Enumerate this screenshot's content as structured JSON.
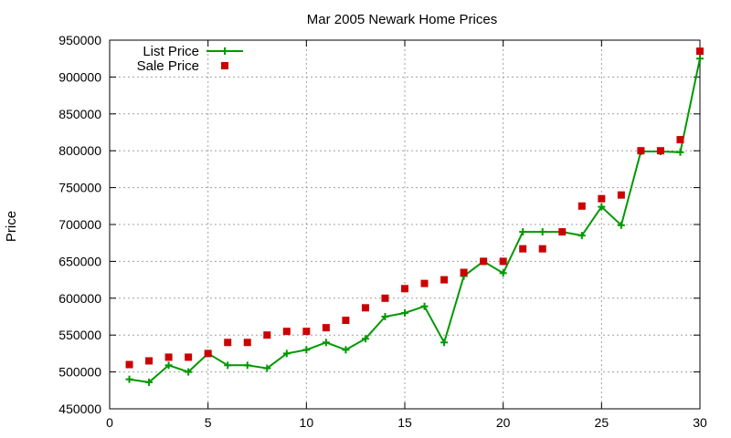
{
  "chart_data": {
    "type": "line",
    "title": "Mar 2005 Newark Home Prices",
    "xlabel": "",
    "ylabel": "Price",
    "xlim": [
      0,
      30
    ],
    "ylim": [
      450000,
      950000
    ],
    "xticks": [
      0,
      5,
      10,
      15,
      20,
      25,
      30
    ],
    "yticks": [
      450000,
      500000,
      550000,
      600000,
      650000,
      700000,
      750000,
      800000,
      850000,
      900000,
      950000
    ],
    "grid": true,
    "legend_position": "top-left",
    "series": [
      {
        "name": "List Price",
        "style": "line-with-plus-markers",
        "color": "#009900",
        "x": [
          1,
          2,
          3,
          4,
          5,
          6,
          7,
          8,
          9,
          10,
          11,
          12,
          13,
          14,
          15,
          16,
          17,
          18,
          19,
          20,
          21,
          22,
          23,
          24,
          25,
          26,
          27,
          28,
          29,
          30
        ],
        "y": [
          490000,
          486000,
          509000,
          500000,
          525000,
          509000,
          509000,
          505000,
          525000,
          530000,
          540000,
          530000,
          545000,
          575000,
          580000,
          589000,
          540000,
          630000,
          650000,
          634000,
          690000,
          690000,
          690000,
          685000,
          724000,
          699000,
          799000,
          799000,
          798000,
          925000
        ]
      },
      {
        "name": "Sale Price",
        "style": "square-markers",
        "color": "#cc0000",
        "x": [
          1,
          2,
          3,
          4,
          5,
          6,
          7,
          8,
          9,
          10,
          11,
          12,
          13,
          14,
          15,
          16,
          17,
          18,
          19,
          20,
          21,
          22,
          23,
          24,
          25,
          26,
          27,
          28,
          29,
          30
        ],
        "y": [
          510000,
          515000,
          520000,
          520000,
          525000,
          540000,
          540000,
          550000,
          555000,
          555000,
          560000,
          570000,
          587000,
          600000,
          613000,
          620000,
          625000,
          635000,
          650000,
          650000,
          667000,
          667000,
          690000,
          725000,
          735000,
          740000,
          800000,
          800000,
          815000,
          935000
        ]
      }
    ]
  }
}
